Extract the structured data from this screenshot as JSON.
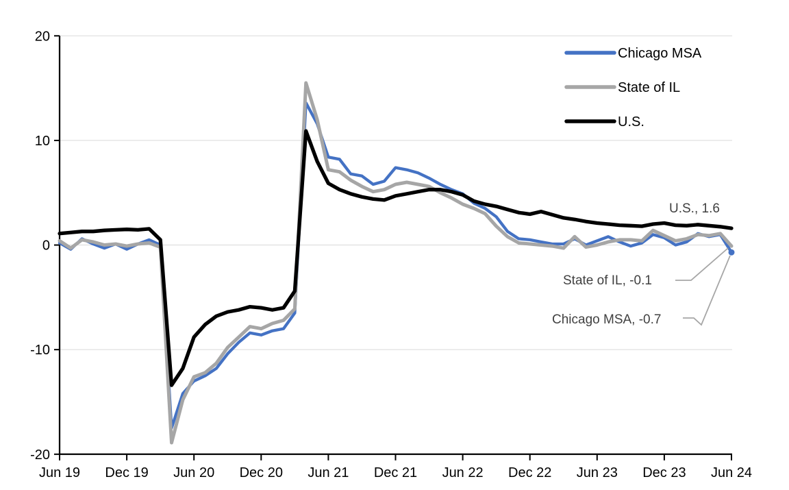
{
  "chart_data": {
    "type": "line",
    "title": "",
    "x_start": "Jun 19",
    "x_end": "Jun 24",
    "x_frequency": "monthly",
    "x_tick_labels": [
      "Jun 19",
      "Dec 19",
      "Jun 20",
      "Dec 20",
      "Jun 21",
      "Dec 21",
      "Jun 22",
      "Dec 22",
      "Jun 23",
      "Dec 23",
      "Jun 24"
    ],
    "ylim": [
      -20,
      20
    ],
    "y_ticks": [
      20,
      10,
      0,
      -10,
      -20
    ],
    "grid": "horizontal",
    "gridline_color": "#D9D9D9",
    "axis_color": "#000000",
    "legend_position": "top-right",
    "series": [
      {
        "name": "Chicago MSA",
        "color": "#4472C4",
        "end_label": "Chicago MSA, -0.7",
        "values": [
          0.2,
          -0.4,
          0.6,
          0.1,
          -0.3,
          0.1,
          -0.4,
          0.1,
          0.5,
          0.0,
          -17.5,
          -14.2,
          -13.0,
          -12.5,
          -11.8,
          -10.4,
          -9.3,
          -8.4,
          -8.6,
          -8.2,
          -8.0,
          -6.5,
          13.6,
          11.6,
          8.4,
          8.2,
          6.8,
          6.6,
          5.8,
          6.1,
          7.4,
          7.2,
          6.9,
          6.4,
          5.8,
          5.3,
          4.9,
          4.0,
          3.5,
          2.7,
          1.3,
          0.6,
          0.5,
          0.3,
          0.1,
          0.1,
          0.6,
          0.0,
          0.4,
          0.8,
          0.3,
          -0.1,
          0.2,
          1.0,
          0.7,
          0.0,
          0.3,
          1.1,
          0.8,
          1.0,
          -0.7
        ]
      },
      {
        "name": "State of IL",
        "color": "#A6A6A6",
        "end_label": "State of IL, -0.1",
        "values": [
          0.4,
          -0.3,
          0.5,
          0.3,
          0.0,
          0.1,
          -0.1,
          0.1,
          0.2,
          -0.2,
          -18.9,
          -14.8,
          -12.6,
          -12.2,
          -11.3,
          -9.8,
          -8.8,
          -7.8,
          -8.0,
          -7.5,
          -7.2,
          -6.1,
          15.5,
          12.0,
          7.2,
          7.0,
          6.2,
          5.6,
          5.1,
          5.3,
          5.8,
          6.0,
          5.8,
          5.6,
          5.0,
          4.5,
          3.9,
          3.5,
          3.0,
          1.8,
          0.8,
          0.2,
          0.1,
          0.0,
          -0.1,
          -0.3,
          0.8,
          -0.2,
          0.0,
          0.3,
          0.5,
          0.5,
          0.4,
          1.4,
          0.9,
          0.4,
          0.6,
          1.0,
          0.9,
          1.1,
          -0.1
        ]
      },
      {
        "name": "U.S.",
        "color": "#000000",
        "end_label": "U.S., 1.6",
        "values": [
          1.1,
          1.2,
          1.3,
          1.3,
          1.4,
          1.45,
          1.5,
          1.45,
          1.55,
          0.5,
          -13.4,
          -11.8,
          -8.8,
          -7.6,
          -6.8,
          -6.4,
          -6.2,
          -5.9,
          -6.0,
          -6.2,
          -6.0,
          -4.4,
          10.9,
          8.0,
          5.9,
          5.3,
          4.9,
          4.6,
          4.4,
          4.3,
          4.7,
          4.9,
          5.1,
          5.3,
          5.3,
          5.1,
          4.8,
          4.2,
          3.9,
          3.7,
          3.4,
          3.1,
          2.95,
          3.2,
          2.9,
          2.6,
          2.45,
          2.25,
          2.1,
          2.0,
          1.9,
          1.85,
          1.8,
          2.0,
          2.1,
          1.9,
          1.85,
          1.95,
          1.85,
          1.75,
          1.6
        ]
      }
    ]
  },
  "annotations": {
    "us": "U.S., 1.6",
    "il": "State of IL, -0.1",
    "chicago": "Chicago MSA, -0.7"
  }
}
